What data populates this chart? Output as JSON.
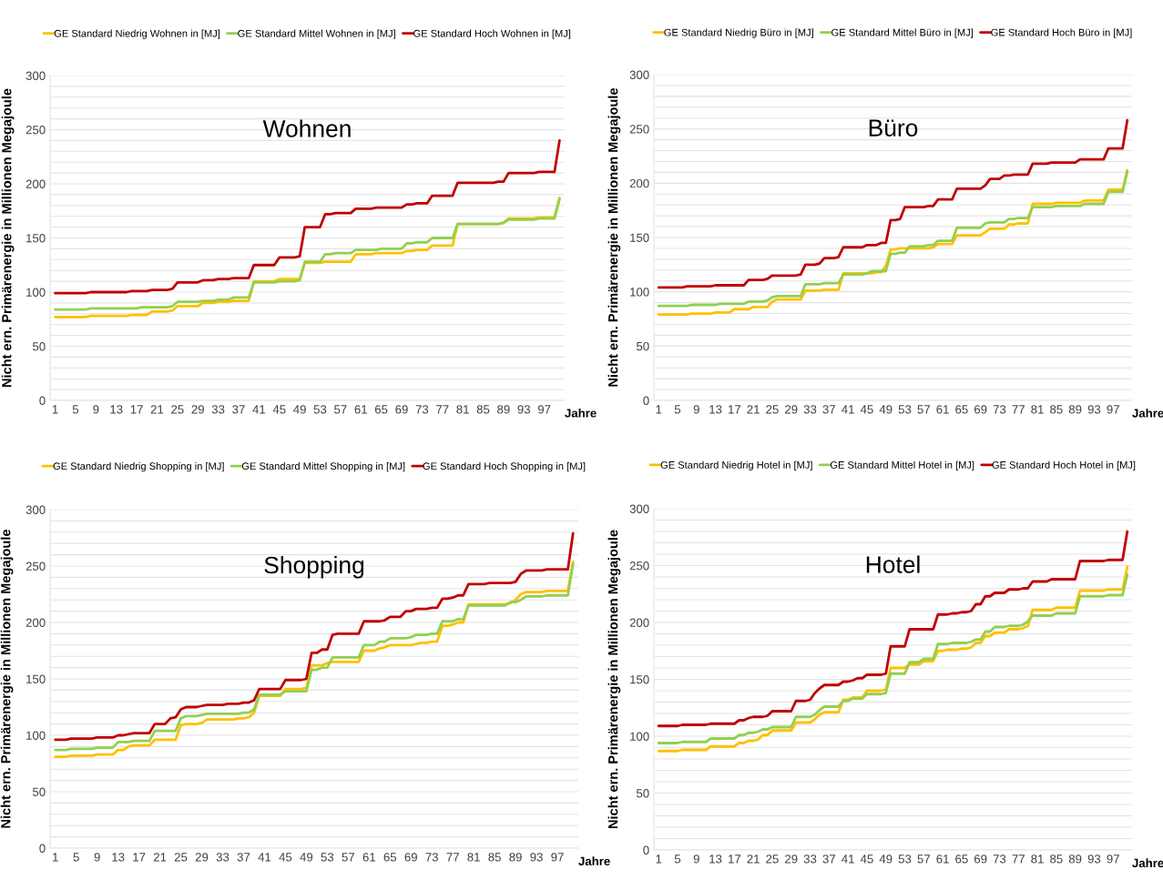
{
  "chart_data": [
    {
      "type": "line",
      "title": "Wohnen",
      "xlabel": "Jahre",
      "ylabel": "Nicht ern. Primärenergie in Millionen Megajoule",
      "categories": [
        "1",
        null,
        null,
        null,
        "5",
        null,
        null,
        null,
        "9",
        null,
        null,
        null,
        "13",
        null,
        null,
        null,
        "17",
        null,
        null,
        null,
        "21",
        null,
        null,
        null,
        "25",
        null,
        null,
        null,
        "29",
        null,
        null,
        null,
        "33",
        null,
        null,
        null,
        "37",
        null,
        null,
        null,
        "41",
        null,
        null,
        null,
        "45",
        null,
        null,
        null,
        "49",
        null,
        null,
        null,
        "53",
        null,
        null,
        null,
        "57",
        null,
        null,
        null,
        "61",
        null,
        null,
        null,
        "65",
        null,
        null,
        null,
        "69",
        null,
        null,
        null,
        "73",
        null,
        null,
        null,
        "77",
        null,
        null,
        null,
        "81",
        null,
        null,
        null,
        "85",
        null,
        null,
        null,
        "89",
        null,
        null,
        null,
        "93",
        null,
        null,
        null,
        "97",
        null,
        null,
        null
      ],
      "ylim": [
        0,
        300
      ],
      "yticks": [
        0,
        {
          "value": 10,
          "label": null
        },
        {
          "value": 20,
          "label": null
        },
        {
          "value": 30,
          "label": null
        },
        {
          "value": 40,
          "label": null
        },
        50,
        {
          "value": 60,
          "label": null
        },
        {
          "value": 70,
          "label": null
        },
        {
          "value": 80,
          "label": null
        },
        {
          "value": 90,
          "label": null
        },
        100,
        {
          "value": 110,
          "label": null
        },
        {
          "value": 120,
          "label": null
        },
        {
          "value": 130,
          "label": null
        },
        {
          "value": 140,
          "label": null
        },
        150,
        {
          "value": 160,
          "label": null
        },
        {
          "value": 170,
          "label": null
        },
        {
          "value": 180,
          "label": null
        },
        {
          "value": 190,
          "label": null
        },
        200,
        {
          "value": 210,
          "label": null
        },
        {
          "value": 220,
          "label": null
        },
        {
          "value": 230,
          "label": null
        },
        {
          "value": 240,
          "label": null
        },
        250,
        {
          "value": 260,
          "label": null
        },
        {
          "value": 270,
          "label": null
        },
        {
          "value": 280,
          "label": null
        },
        {
          "value": 290,
          "label": null
        },
        300
      ],
      "grid": "y",
      "legend": "top",
      "marker": "none",
      "line_style": "solid",
      "series": [
        {
          "name": "GE Standard Niedrig Wohnen in [MJ]",
          "color": "#ffc000",
          "values": [
            77,
            77,
            77,
            77,
            77,
            77,
            77,
            78,
            78,
            78,
            78,
            78,
            78,
            78,
            78,
            79,
            79,
            79,
            79,
            82,
            82,
            82,
            82,
            83,
            87,
            87,
            87,
            87,
            87,
            90,
            90,
            90,
            91,
            91,
            91,
            92,
            92,
            92,
            92,
            110,
            110,
            110,
            110,
            110,
            112,
            112,
            112,
            112,
            112,
            127,
            127,
            127,
            127,
            128,
            128,
            128,
            128,
            128,
            128,
            135,
            135,
            135,
            135,
            136,
            136,
            136,
            136,
            136,
            136,
            138,
            138,
            139,
            139,
            139,
            143,
            143,
            143,
            143,
            143,
            163,
            163,
            163,
            163,
            163,
            163,
            163,
            163,
            163,
            164,
            168,
            168,
            168,
            168,
            168,
            168,
            169,
            169,
            169,
            169,
            187
          ]
        },
        {
          "name": "GE Standard Mittel Wohnen in [MJ]",
          "color": "#92d050",
          "values": [
            84,
            84,
            84,
            84,
            84,
            84,
            84,
            85,
            85,
            85,
            85,
            85,
            85,
            85,
            85,
            85,
            85,
            86,
            86,
            86,
            86,
            86,
            86,
            87,
            91,
            91,
            91,
            91,
            91,
            92,
            92,
            92,
            93,
            93,
            93,
            95,
            95,
            95,
            95,
            109,
            109,
            109,
            109,
            109,
            110,
            110,
            110,
            110,
            111,
            128,
            128,
            128,
            128,
            135,
            135,
            136,
            136,
            136,
            136,
            139,
            139,
            139,
            139,
            139,
            140,
            140,
            140,
            140,
            140,
            145,
            145,
            146,
            146,
            146,
            150,
            150,
            150,
            150,
            150,
            163,
            163,
            163,
            163,
            163,
            163,
            163,
            163,
            163,
            164,
            167,
            167,
            167,
            167,
            167,
            167,
            168,
            168,
            168,
            168,
            186
          ]
        },
        {
          "name": "GE Standard Hoch Wohnen in [MJ]",
          "color": "#c00000",
          "values": [
            99,
            99,
            99,
            99,
            99,
            99,
            99,
            100,
            100,
            100,
            100,
            100,
            100,
            100,
            100,
            101,
            101,
            101,
            101,
            102,
            102,
            102,
            102,
            103,
            109,
            109,
            109,
            109,
            109,
            111,
            111,
            111,
            112,
            112,
            112,
            113,
            113,
            113,
            113,
            125,
            125,
            125,
            125,
            125,
            132,
            132,
            132,
            132,
            133,
            160,
            160,
            160,
            160,
            172,
            172,
            173,
            173,
            173,
            173,
            177,
            177,
            177,
            177,
            178,
            178,
            178,
            178,
            178,
            178,
            181,
            181,
            182,
            182,
            182,
            189,
            189,
            189,
            189,
            189,
            201,
            201,
            201,
            201,
            201,
            201,
            201,
            201,
            202,
            202,
            210,
            210,
            210,
            210,
            210,
            210,
            211,
            211,
            211,
            211,
            240
          ]
        }
      ]
    },
    {
      "type": "line",
      "title": "Büro",
      "xlabel": "Jahre",
      "ylabel": "Nicht ern. Primärenergie in Millionen Megajoule",
      "categories": [
        "1",
        null,
        null,
        null,
        "5",
        null,
        null,
        null,
        "9",
        null,
        null,
        null,
        "13",
        null,
        null,
        null,
        "17",
        null,
        null,
        null,
        "21",
        null,
        null,
        null,
        "25",
        null,
        null,
        null,
        "29",
        null,
        null,
        null,
        "33",
        null,
        null,
        null,
        "37",
        null,
        null,
        null,
        "41",
        null,
        null,
        null,
        "45",
        null,
        null,
        null,
        "49",
        null,
        null,
        null,
        "53",
        null,
        null,
        null,
        "57",
        null,
        null,
        null,
        "61",
        null,
        null,
        null,
        "65",
        null,
        null,
        null,
        "69",
        null,
        null,
        null,
        "73",
        null,
        null,
        null,
        "77",
        null,
        null,
        null,
        "81",
        null,
        null,
        null,
        "85",
        null,
        null,
        null,
        "89",
        null,
        null,
        null,
        "93",
        null,
        null,
        null,
        "97",
        null,
        null,
        null
      ],
      "ylim": [
        0,
        300
      ],
      "yticks": [
        0,
        {
          "value": 10,
          "label": null
        },
        {
          "value": 20,
          "label": null
        },
        {
          "value": 30,
          "label": null
        },
        {
          "value": 40,
          "label": null
        },
        50,
        {
          "value": 60,
          "label": null
        },
        {
          "value": 70,
          "label": null
        },
        {
          "value": 80,
          "label": null
        },
        {
          "value": 90,
          "label": null
        },
        100,
        {
          "value": 110,
          "label": null
        },
        {
          "value": 120,
          "label": null
        },
        {
          "value": 130,
          "label": null
        },
        {
          "value": 140,
          "label": null
        },
        150,
        {
          "value": 160,
          "label": null
        },
        {
          "value": 170,
          "label": null
        },
        {
          "value": 180,
          "label": null
        },
        {
          "value": 190,
          "label": null
        },
        200,
        {
          "value": 210,
          "label": null
        },
        {
          "value": 220,
          "label": null
        },
        {
          "value": 230,
          "label": null
        },
        {
          "value": 240,
          "label": null
        },
        250,
        {
          "value": 260,
          "label": null
        },
        {
          "value": 270,
          "label": null
        },
        {
          "value": 280,
          "label": null
        },
        {
          "value": 290,
          "label": null
        },
        300
      ],
      "grid": "y",
      "legend": "top",
      "marker": "none",
      "line_style": "solid",
      "series": [
        {
          "name": "GE Standard Niedrig Büro in [MJ]",
          "color": "#ffc000",
          "values": [
            79,
            79,
            79,
            79,
            79,
            79,
            79,
            80,
            80,
            80,
            80,
            80,
            81,
            81,
            81,
            81,
            84,
            84,
            84,
            84,
            86,
            86,
            86,
            86,
            91,
            93,
            93,
            93,
            93,
            93,
            93,
            101,
            101,
            101,
            101,
            102,
            102,
            102,
            102,
            117,
            117,
            117,
            117,
            117,
            117,
            117,
            118,
            118,
            124,
            139,
            139,
            140,
            140,
            140,
            140,
            140,
            140,
            140,
            141,
            144,
            144,
            144,
            144,
            152,
            152,
            152,
            152,
            152,
            152,
            155,
            158,
            158,
            158,
            158,
            162,
            162,
            163,
            163,
            163,
            181,
            181,
            181,
            181,
            181,
            182,
            182,
            182,
            182,
            182,
            182,
            184,
            184,
            184,
            184,
            184,
            194,
            194,
            194,
            194,
            212
          ]
        },
        {
          "name": "GE Standard Mittel Büro in [MJ]",
          "color": "#92d050",
          "values": [
            87,
            87,
            87,
            87,
            87,
            87,
            87,
            88,
            88,
            88,
            88,
            88,
            88,
            89,
            89,
            89,
            89,
            89,
            89,
            91,
            91,
            91,
            91,
            92,
            95,
            96,
            96,
            96,
            96,
            96,
            96,
            107,
            107,
            107,
            107,
            108,
            108,
            108,
            108,
            116,
            116,
            116,
            116,
            116,
            117,
            119,
            119,
            119,
            119,
            135,
            135,
            136,
            136,
            142,
            142,
            142,
            142,
            143,
            143,
            147,
            147,
            147,
            147,
            159,
            159,
            159,
            159,
            159,
            159,
            163,
            164,
            164,
            164,
            164,
            167,
            167,
            168,
            168,
            168,
            178,
            178,
            178,
            178,
            178,
            179,
            179,
            179,
            179,
            179,
            179,
            181,
            181,
            181,
            181,
            181,
            192,
            192,
            192,
            192,
            211
          ]
        },
        {
          "name": "GE Standard Hoch Büro in [MJ]",
          "color": "#c00000",
          "values": [
            104,
            104,
            104,
            104,
            104,
            104,
            105,
            105,
            105,
            105,
            105,
            105,
            106,
            106,
            106,
            106,
            106,
            106,
            106,
            111,
            111,
            111,
            111,
            112,
            115,
            115,
            115,
            115,
            115,
            115,
            116,
            125,
            125,
            125,
            126,
            131,
            131,
            131,
            132,
            141,
            141,
            141,
            141,
            141,
            143,
            143,
            143,
            145,
            145,
            166,
            166,
            167,
            178,
            178,
            178,
            178,
            178,
            179,
            179,
            185,
            185,
            185,
            185,
            195,
            195,
            195,
            195,
            195,
            195,
            198,
            204,
            204,
            204,
            207,
            207,
            208,
            208,
            208,
            208,
            218,
            218,
            218,
            218,
            219,
            219,
            219,
            219,
            219,
            219,
            222,
            222,
            222,
            222,
            222,
            222,
            232,
            232,
            232,
            232,
            258
          ]
        }
      ]
    },
    {
      "type": "line",
      "title": "Shopping",
      "xlabel": "Jahre",
      "ylabel": "Nicht ern. Primärenergie in Millionen Megajoule",
      "categories": [
        "1",
        null,
        null,
        null,
        "5",
        null,
        null,
        null,
        "9",
        null,
        null,
        null,
        "13",
        null,
        null,
        null,
        "17",
        null,
        null,
        null,
        "21",
        null,
        null,
        null,
        "25",
        null,
        null,
        null,
        "29",
        null,
        null,
        null,
        "33",
        null,
        null,
        null,
        "37",
        null,
        null,
        null,
        "41",
        null,
        null,
        null,
        "45",
        null,
        null,
        null,
        "49",
        null,
        null,
        null,
        "53",
        null,
        null,
        null,
        "57",
        null,
        null,
        null,
        "61",
        null,
        null,
        null,
        "65",
        null,
        null,
        null,
        "69",
        null,
        null,
        null,
        "73",
        null,
        null,
        null,
        "77",
        null,
        null,
        null,
        "81",
        null,
        null,
        null,
        "85",
        null,
        null,
        null,
        "89",
        null,
        null,
        null,
        "93",
        null,
        null,
        null,
        "97",
        null,
        null,
        null
      ],
      "ylim": [
        0,
        300
      ],
      "yticks": [
        0,
        {
          "value": 10,
          "label": null
        },
        {
          "value": 20,
          "label": null
        },
        {
          "value": 30,
          "label": null
        },
        {
          "value": 40,
          "label": null
        },
        50,
        {
          "value": 60,
          "label": null
        },
        {
          "value": 70,
          "label": null
        },
        {
          "value": 80,
          "label": null
        },
        {
          "value": 90,
          "label": null
        },
        100,
        {
          "value": 110,
          "label": null
        },
        {
          "value": 120,
          "label": null
        },
        {
          "value": 130,
          "label": null
        },
        {
          "value": 140,
          "label": null
        },
        150,
        {
          "value": 160,
          "label": null
        },
        {
          "value": 170,
          "label": null
        },
        {
          "value": 180,
          "label": null
        },
        {
          "value": 190,
          "label": null
        },
        200,
        {
          "value": 210,
          "label": null
        },
        {
          "value": 220,
          "label": null
        },
        {
          "value": 230,
          "label": null
        },
        {
          "value": 240,
          "label": null
        },
        250,
        {
          "value": 260,
          "label": null
        },
        {
          "value": 270,
          "label": null
        },
        {
          "value": 280,
          "label": null
        },
        {
          "value": 290,
          "label": null
        },
        300
      ],
      "grid": "y",
      "legend": "top",
      "marker": "none",
      "line_style": "solid",
      "series": [
        {
          "name": "GE Standard Niedrig Shopping in [MJ]",
          "color": "#ffc000",
          "values": [
            81,
            81,
            81,
            82,
            82,
            82,
            82,
            82,
            83,
            83,
            83,
            83,
            87,
            87,
            90,
            91,
            91,
            91,
            91,
            96,
            96,
            96,
            96,
            96,
            109,
            110,
            110,
            110,
            111,
            114,
            114,
            114,
            114,
            114,
            114,
            115,
            115,
            116,
            120,
            135,
            135,
            135,
            135,
            135,
            141,
            141,
            141,
            141,
            142,
            162,
            162,
            162,
            164,
            165,
            165,
            165,
            165,
            165,
            165,
            175,
            175,
            175,
            177,
            178,
            180,
            180,
            180,
            180,
            180,
            181,
            182,
            182,
            183,
            183,
            197,
            197,
            198,
            200,
            200,
            216,
            216,
            216,
            216,
            216,
            216,
            216,
            216,
            217,
            220,
            225,
            227,
            227,
            227,
            227,
            228,
            228,
            228,
            228,
            228,
            254
          ]
        },
        {
          "name": "GE Standard Mittel Shopping in [MJ]",
          "color": "#92d050",
          "values": [
            87,
            87,
            87,
            88,
            88,
            88,
            88,
            88,
            89,
            89,
            89,
            89,
            94,
            94,
            94,
            95,
            95,
            95,
            95,
            104,
            104,
            104,
            104,
            104,
            115,
            117,
            117,
            117,
            118,
            119,
            119,
            119,
            119,
            119,
            119,
            119,
            120,
            120,
            123,
            136,
            136,
            136,
            136,
            136,
            139,
            139,
            139,
            139,
            139,
            158,
            158,
            160,
            160,
            169,
            169,
            169,
            169,
            169,
            169,
            180,
            180,
            180,
            183,
            183,
            186,
            186,
            186,
            186,
            187,
            189,
            189,
            189,
            190,
            190,
            201,
            201,
            201,
            203,
            203,
            215,
            215,
            215,
            215,
            215,
            215,
            215,
            215,
            218,
            218,
            220,
            223,
            223,
            223,
            223,
            224,
            224,
            224,
            224,
            224,
            252
          ]
        },
        {
          "name": "GE Standard Hoch Shopping in [MJ]",
          "color": "#c00000",
          "values": [
            96,
            96,
            96,
            97,
            97,
            97,
            97,
            97,
            98,
            98,
            98,
            98,
            100,
            100,
            101,
            102,
            102,
            102,
            102,
            110,
            110,
            110,
            115,
            116,
            123,
            125,
            125,
            125,
            126,
            127,
            127,
            127,
            127,
            128,
            128,
            128,
            129,
            129,
            131,
            141,
            141,
            141,
            141,
            141,
            149,
            149,
            149,
            149,
            150,
            173,
            173,
            176,
            176,
            189,
            190,
            190,
            190,
            190,
            190,
            201,
            201,
            201,
            201,
            202,
            205,
            205,
            205,
            210,
            210,
            212,
            212,
            212,
            213,
            213,
            221,
            221,
            222,
            224,
            224,
            234,
            234,
            234,
            234,
            235,
            235,
            235,
            235,
            235,
            236,
            243,
            246,
            246,
            246,
            246,
            247,
            247,
            247,
            247,
            247,
            279
          ]
        }
      ]
    },
    {
      "type": "line",
      "title": "Hotel",
      "xlabel": "Jahre",
      "ylabel": "Nicht ern. Primärenergie in Millionen Megajoule",
      "categories": [
        "1",
        null,
        null,
        null,
        "5",
        null,
        null,
        null,
        "9",
        null,
        null,
        null,
        "13",
        null,
        null,
        null,
        "17",
        null,
        null,
        null,
        "21",
        null,
        null,
        null,
        "25",
        null,
        null,
        null,
        "29",
        null,
        null,
        null,
        "33",
        null,
        null,
        null,
        "37",
        null,
        null,
        null,
        "41",
        null,
        null,
        null,
        "45",
        null,
        null,
        null,
        "49",
        null,
        null,
        null,
        "53",
        null,
        null,
        null,
        "57",
        null,
        null,
        null,
        "61",
        null,
        null,
        null,
        "65",
        null,
        null,
        null,
        "69",
        null,
        null,
        null,
        "73",
        null,
        null,
        null,
        "77",
        null,
        null,
        null,
        "81",
        null,
        null,
        null,
        "85",
        null,
        null,
        null,
        "89",
        null,
        null,
        null,
        "93",
        null,
        null,
        null,
        "97",
        null,
        null,
        null
      ],
      "ylim": [
        0,
        300
      ],
      "yticks": [
        0,
        {
          "value": 10,
          "label": null
        },
        {
          "value": 20,
          "label": null
        },
        {
          "value": 30,
          "label": null
        },
        {
          "value": 40,
          "label": null
        },
        50,
        {
          "value": 60,
          "label": null
        },
        {
          "value": 70,
          "label": null
        },
        {
          "value": 80,
          "label": null
        },
        {
          "value": 90,
          "label": null
        },
        100,
        {
          "value": 110,
          "label": null
        },
        {
          "value": 120,
          "label": null
        },
        {
          "value": 130,
          "label": null
        },
        {
          "value": 140,
          "label": null
        },
        150,
        {
          "value": 160,
          "label": null
        },
        {
          "value": 170,
          "label": null
        },
        {
          "value": 180,
          "label": null
        },
        {
          "value": 190,
          "label": null
        },
        200,
        {
          "value": 210,
          "label": null
        },
        {
          "value": 220,
          "label": null
        },
        {
          "value": 230,
          "label": null
        },
        {
          "value": 240,
          "label": null
        },
        250,
        {
          "value": 260,
          "label": null
        },
        {
          "value": 270,
          "label": null
        },
        {
          "value": 280,
          "label": null
        },
        {
          "value": 290,
          "label": null
        },
        300
      ],
      "grid": "y",
      "legend": "top",
      "marker": "none",
      "line_style": "solid",
      "series": [
        {
          "name": "GE Standard Niedrig Hotel in [MJ]",
          "color": "#ffc000",
          "values": [
            87,
            87,
            87,
            87,
            87,
            88,
            88,
            88,
            88,
            88,
            88,
            91,
            91,
            91,
            91,
            91,
            91,
            94,
            94,
            96,
            96,
            97,
            101,
            101,
            105,
            105,
            105,
            105,
            105,
            112,
            112,
            112,
            112,
            115,
            119,
            121,
            121,
            121,
            121,
            132,
            132,
            134,
            134,
            134,
            140,
            140,
            140,
            140,
            141,
            160,
            160,
            160,
            160,
            163,
            163,
            163,
            166,
            166,
            166,
            175,
            175,
            176,
            176,
            176,
            177,
            177,
            178,
            182,
            182,
            188,
            188,
            191,
            191,
            191,
            194,
            194,
            194,
            195,
            197,
            211,
            211,
            211,
            211,
            211,
            213,
            213,
            213,
            213,
            213,
            228,
            228,
            228,
            228,
            228,
            228,
            229,
            229,
            229,
            229,
            249
          ]
        },
        {
          "name": "GE Standard Mittel Hotel in [MJ]",
          "color": "#92d050",
          "values": [
            94,
            94,
            94,
            94,
            94,
            95,
            95,
            95,
            95,
            95,
            95,
            98,
            98,
            98,
            98,
            98,
            98,
            101,
            101,
            103,
            103,
            104,
            106,
            106,
            108,
            108,
            108,
            108,
            108,
            117,
            117,
            117,
            117,
            119,
            123,
            126,
            126,
            126,
            126,
            131,
            131,
            133,
            133,
            133,
            137,
            137,
            137,
            137,
            138,
            155,
            155,
            155,
            155,
            165,
            165,
            165,
            168,
            168,
            168,
            181,
            181,
            181,
            182,
            182,
            182,
            182,
            183,
            185,
            185,
            192,
            192,
            196,
            196,
            196,
            197,
            197,
            197,
            198,
            201,
            206,
            206,
            206,
            206,
            206,
            208,
            208,
            208,
            208,
            208,
            223,
            223,
            223,
            223,
            223,
            223,
            224,
            224,
            224,
            224,
            242
          ]
        },
        {
          "name": "GE Standard Hoch Hotel in [MJ]",
          "color": "#c00000",
          "values": [
            109,
            109,
            109,
            109,
            109,
            110,
            110,
            110,
            110,
            110,
            110,
            111,
            111,
            111,
            111,
            111,
            111,
            114,
            114,
            116,
            117,
            117,
            117,
            118,
            122,
            122,
            122,
            122,
            122,
            131,
            131,
            131,
            132,
            138,
            142,
            145,
            145,
            145,
            145,
            148,
            148,
            149,
            151,
            151,
            154,
            154,
            154,
            154,
            155,
            179,
            179,
            179,
            179,
            194,
            194,
            194,
            194,
            194,
            194,
            207,
            207,
            207,
            208,
            208,
            209,
            209,
            210,
            216,
            216,
            223,
            223,
            226,
            226,
            226,
            229,
            229,
            229,
            230,
            230,
            236,
            236,
            236,
            236,
            238,
            238,
            238,
            238,
            238,
            238,
            254,
            254,
            254,
            254,
            254,
            254,
            255,
            255,
            255,
            255,
            280
          ]
        }
      ]
    }
  ]
}
